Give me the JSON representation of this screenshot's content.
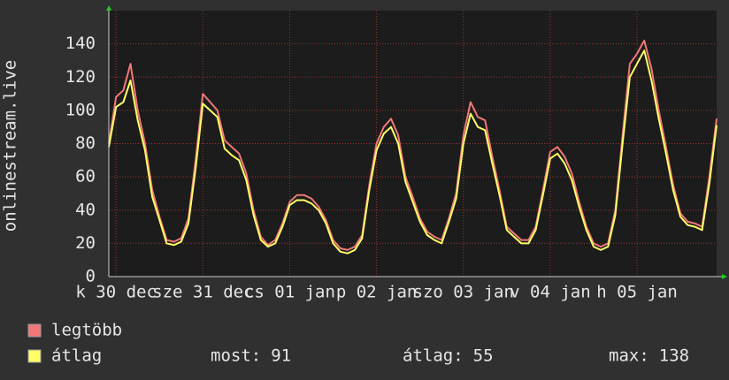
{
  "chart_data": {
    "type": "line",
    "y_label": "onlinestream.live",
    "ylim": [
      0,
      160
    ],
    "yticks": [
      0,
      20,
      40,
      60,
      80,
      100,
      120,
      140
    ],
    "xlim": [
      0,
      84
    ],
    "xticks": [
      {
        "value": 1,
        "label": "k 30 dec"
      },
      {
        "value": 13,
        "label": "sze 31 dec"
      },
      {
        "value": 25,
        "label": "cs 01 jan"
      },
      {
        "value": 37,
        "label": "p 02 jan"
      },
      {
        "value": 49,
        "label": "szo 03 jan"
      },
      {
        "value": 61,
        "label": "v 04 jan"
      },
      {
        "value": 73,
        "label": "h 05 jan"
      }
    ],
    "grid": true,
    "series": [
      {
        "name": "legtöbb",
        "color": "#f07878",
        "values": [
          80,
          108,
          112,
          128,
          100,
          80,
          52,
          36,
          22,
          21,
          23,
          35,
          70,
          110,
          105,
          100,
          82,
          78,
          74,
          62,
          40,
          24,
          19,
          22,
          32,
          45,
          49,
          49,
          47,
          42,
          34,
          22,
          17,
          16,
          18,
          25,
          55,
          80,
          90,
          95,
          85,
          60,
          48,
          35,
          27,
          24,
          22,
          35,
          50,
          85,
          105,
          96,
          94,
          72,
          52,
          30,
          26,
          22,
          22,
          30,
          52,
          75,
          78,
          72,
          62,
          45,
          30,
          20,
          18,
          20,
          40,
          85,
          128,
          134,
          142,
          125,
          100,
          78,
          55,
          38,
          33,
          32,
          30,
          60,
          95
        ]
      },
      {
        "name": "átlag",
        "color": "#ffff66",
        "values": [
          78,
          102,
          105,
          118,
          94,
          76,
          48,
          34,
          20,
          19,
          21,
          32,
          65,
          104,
          100,
          96,
          77,
          73,
          70,
          58,
          37,
          22,
          18,
          20,
          30,
          43,
          46,
          46,
          44,
          40,
          32,
          20,
          15,
          14,
          16,
          23,
          52,
          76,
          86,
          90,
          80,
          57,
          45,
          33,
          25,
          22,
          20,
          33,
          47,
          80,
          98,
          90,
          88,
          68,
          49,
          28,
          24,
          20,
          20,
          28,
          49,
          71,
          74,
          68,
          58,
          42,
          28,
          18,
          16,
          18,
          37,
          80,
          120,
          128,
          136,
          118,
          95,
          74,
          52,
          36,
          31,
          30,
          28,
          56,
          91
        ]
      }
    ],
    "legend": "bottom-left",
    "stats": [
      {
        "label": "most:",
        "value": 91
      },
      {
        "label": "átlag:",
        "value": 55
      },
      {
        "label": "max:",
        "value": 138
      }
    ]
  }
}
